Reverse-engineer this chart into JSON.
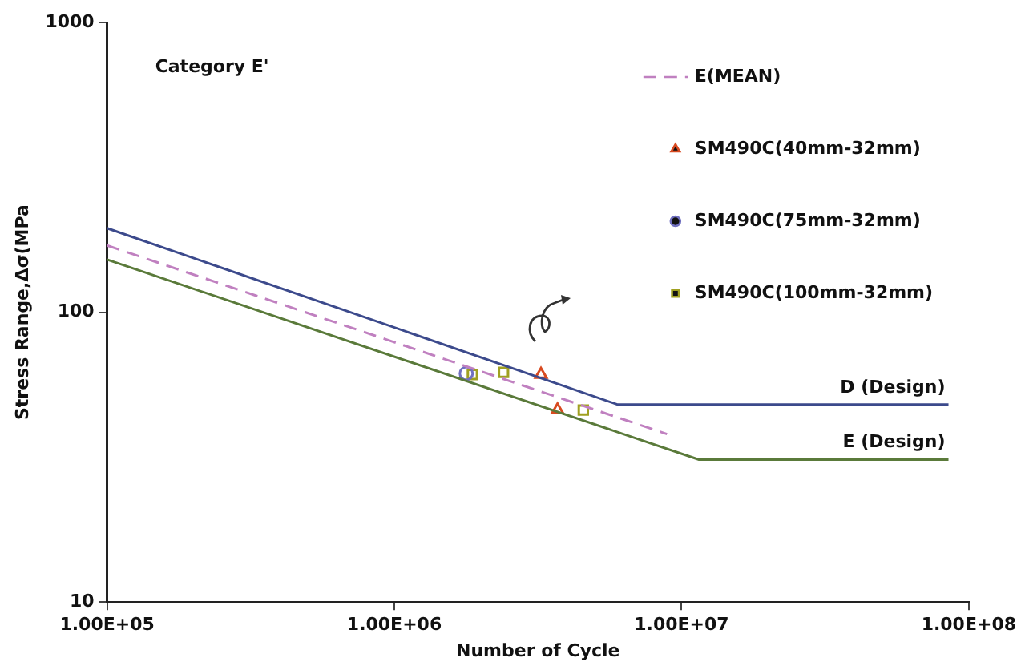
{
  "chart_data": {
    "type": "scatter",
    "xlabel": "Number of Cycle",
    "ylabel": "Stress Range,Δσ(MPa",
    "log": "xy",
    "xlim": [
      100000,
      100000000
    ],
    "ylim": [
      10,
      1000
    ],
    "xticks": [
      {
        "value": 100000,
        "label": "1.00E+05"
      },
      {
        "value": 1000000,
        "label": "1.00E+06"
      },
      {
        "value": 10000000,
        "label": "1.00E+07"
      },
      {
        "value": 100000000,
        "label": "1.00E+08"
      }
    ],
    "yticks": [
      10,
      100,
      1000
    ],
    "grid": false,
    "legend": "top right",
    "annotations": [
      "Category E'"
    ],
    "series": [
      {
        "name": "D (Design)",
        "type": "line",
        "line_style": "solid",
        "marker": "none",
        "color": "#3c4a8c",
        "x": [
          100000,
          6000000,
          85000000
        ],
        "values": [
          195,
          48,
          48
        ]
      },
      {
        "name": "E (Design)",
        "type": "line",
        "line_style": "solid",
        "marker": "none",
        "color": "#5a7a3a",
        "x": [
          100000,
          11500000,
          85000000
        ],
        "values": [
          152,
          31,
          31
        ]
      },
      {
        "name": "E(MEAN)",
        "type": "line",
        "line_style": "dashed",
        "marker": "none",
        "color": "#c080c0",
        "x": [
          100000,
          8900000
        ],
        "values": [
          170,
          38
        ]
      },
      {
        "name": "SM490C(40mm-32mm)",
        "type": "scatter",
        "marker": "triangle",
        "color": "#d84a20",
        "x": [
          3240000,
          3700000
        ],
        "values": [
          61,
          46
        ]
      },
      {
        "name": "SM490C(75mm-32mm)",
        "type": "scatter",
        "marker": "circle",
        "color": "#7070c0",
        "x": [
          1780000
        ],
        "values": [
          61.5
        ]
      },
      {
        "name": "SM490C(100mm-32mm)",
        "type": "scatter",
        "marker": "square",
        "color": "#a0a020",
        "x": [
          1870000,
          2400000,
          4550000
        ],
        "values": [
          61,
          62,
          46
        ]
      }
    ]
  }
}
